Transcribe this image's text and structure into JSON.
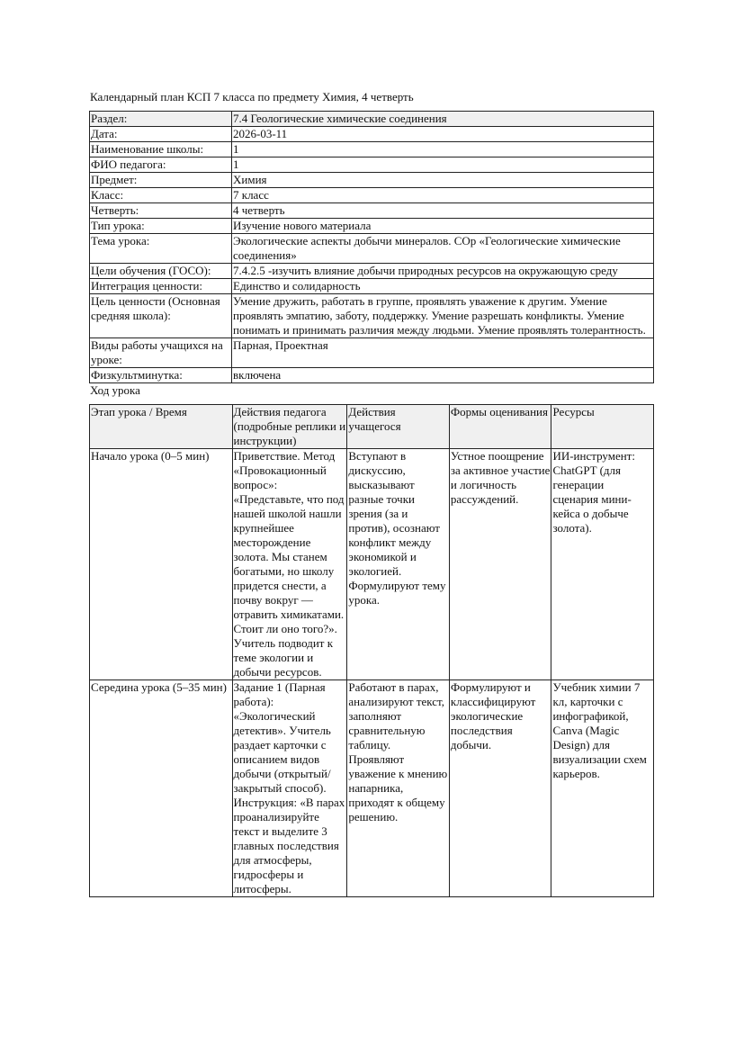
{
  "title": "Календарный план КСП 7 класса по предмету Химия, 4 четверть",
  "info": [
    {
      "label": "Раздел:",
      "value": "7.4 Геологические химические соединения"
    },
    {
      "label": "Дата:",
      "value": "2026-03-11"
    },
    {
      "label": "Наименование школы:",
      "value": "1"
    },
    {
      "label": "ФИО педагога:",
      "value": "1"
    },
    {
      "label": "Предмет:",
      "value": "Химия"
    },
    {
      "label": "Класс:",
      "value": "7 класс"
    },
    {
      "label": "Четверть:",
      "value": "4 четверть"
    },
    {
      "label": "Тип урока:",
      "value": "Изучение нового материала"
    },
    {
      "label": "Тема урока:",
      "value": "Экологические аспекты добычи минералов. СОр «Геологические химические соединения»"
    },
    {
      "label": "Цели обучения (ГОСО):",
      "value": "7.4.2.5 -изучить влияние добычи природных ресурсов на окружающую среду"
    },
    {
      "label": "Интеграция ценности:",
      "value": "Единство и солидарность"
    },
    {
      "label": "Цель ценности (Основная средняя школа):",
      "value": "Умение дружить, работать в группе, проявлять уважение к другим. Умение проявлять эмпатию, заботу, поддержку. Умение разрешать конфликты. Умение понимать и принимать различия между людьми. Умение проявлять толерантность."
    },
    {
      "label": "Виды работы учащихся на уроке:",
      "value": "Парная, Проектная"
    },
    {
      "label": "Физкультминутка:",
      "value": "включена"
    }
  ],
  "lesson_heading": "Ход урока",
  "lesson": {
    "headers": [
      "Этап урока / Время",
      "Действия педагога (подробные реплики и инструкции)",
      "Действия учащегося",
      "Формы оценивания",
      "Ресурсы"
    ],
    "rows": [
      [
        "Начало урока (0–5 мин)",
        "Приветствие. Метод «Провокационный вопрос»: «Представьте, что под нашей школой нашли крупнейшее месторождение золота. Мы станем богатыми, но школу придется снести, а почву вокруг — отравить химикатами. Стоит ли оно того?». Учитель подводит к теме экологии и добычи ресурсов.",
        "Вступают в дискуссию, высказывают разные точки зрения (за и против), осознают конфликт между экономикой и экологией. Формулируют тему урока.",
        "Устное поощрение за активное участие и логичность рассуждений.",
        "ИИ-инструмент: ChatGPT (для генерации сценария мини-кейса о добыче золота)."
      ],
      [
        "Середина урока (5–35 мин)",
        "Задание 1 (Парная работа): «Экологический детектив». Учитель раздает карточки с описанием видов добычи (открытый/закрытый способ). Инструкция: «В парах проанализируйте текст и выделите 3 главных последствия для атмосферы, гидросферы и литосферы.",
        "Работают в парах, анализируют текст, заполняют сравнительную таблицу. Проявляют уважение к мнению напарника, приходят к общему решению.",
        "Формулируют и классифицируют экологические последствия добычи.",
        "Учебник химии 7 кл, карточки с инфографикой, Canva (Magic Design) для визуализации схем карьеров."
      ]
    ]
  }
}
